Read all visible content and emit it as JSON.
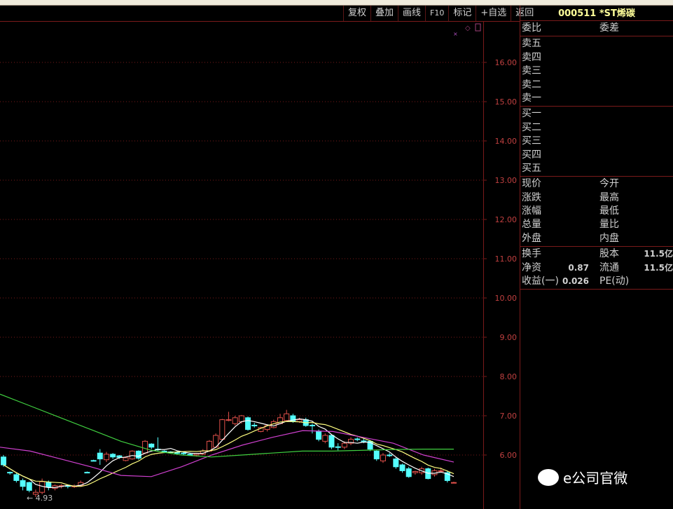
{
  "toolbar": {
    "buttons": [
      "复权",
      "叠加",
      "画线",
      "F10",
      "标记",
      "+自选",
      "返回"
    ]
  },
  "stock": {
    "code_name": "000511 *ST烯碳"
  },
  "panel": {
    "weibi": "委比",
    "weicha": "委差",
    "sell": [
      "卖五",
      "卖四",
      "卖三",
      "卖二",
      "卖一"
    ],
    "buy": [
      "买一",
      "买二",
      "买三",
      "买四",
      "买五"
    ],
    "quote": [
      [
        "现价",
        "今开"
      ],
      [
        "涨跌",
        "最高"
      ],
      [
        "涨幅",
        "最低"
      ],
      [
        "总量",
        "量比"
      ],
      [
        "外盘",
        "内盘"
      ]
    ],
    "fund": [
      {
        "l1": "换手",
        "v1": "",
        "l2": "股本",
        "v2": "11.5亿"
      },
      {
        "l1": "净资",
        "v1": "0.87",
        "l2": "流通",
        "v2": "11.5亿"
      },
      {
        "l1": "收益(一)",
        "v1": "0.026",
        "l2": "PE(动)",
        "v2": ""
      }
    ]
  },
  "watermark": "e公司官微",
  "chart_data": {
    "type": "candlestick",
    "ylim": [
      4.6,
      16.9
    ],
    "yticks": [
      "16.00",
      "15.00",
      "14.00",
      "13.00",
      "12.00",
      "11.00",
      "10.00",
      "9.00",
      "8.00",
      "7.00",
      "6.00"
    ],
    "low_marker": "4.93",
    "colors": {
      "up": "#e0504a",
      "down": "#54ffff",
      "ma_short": "#ffffff",
      "ma_mid": "#ffff80",
      "ma_long": "#d040d0",
      "ma_xlong": "#40d040",
      "grid": "#7a1a1a"
    },
    "candles": [
      [
        5.95,
        5.75,
        6.0,
        5.7
      ],
      [
        5.56,
        5.55,
        5.58,
        5.5
      ],
      [
        5.5,
        5.35,
        5.55,
        5.3
      ],
      [
        5.35,
        5.2,
        5.4,
        5.1
      ],
      [
        5.3,
        5.1,
        5.32,
        5.05
      ],
      [
        5.0,
        5.05,
        5.12,
        4.93
      ],
      [
        5.05,
        5.32,
        5.4,
        5.0
      ],
      [
        5.3,
        5.18,
        5.35,
        5.1
      ],
      [
        5.15,
        5.22,
        5.25,
        5.1
      ],
      [
        5.2,
        5.22,
        5.26,
        5.15
      ],
      [
        5.22,
        5.2,
        5.24,
        5.15
      ],
      [
        5.2,
        5.21,
        5.25,
        5.16
      ],
      [
        5.22,
        5.3,
        5.35,
        5.2
      ],
      [
        5.56,
        5.55,
        5.58,
        5.55
      ],
      [
        5.86,
        5.85,
        5.88,
        5.85
      ],
      [
        6.05,
        5.9,
        6.15,
        5.75
      ],
      [
        5.88,
        6.02,
        6.08,
        5.82
      ],
      [
        6.02,
        5.95,
        6.05,
        5.9
      ],
      [
        5.98,
        5.94,
        6.0,
        5.9
      ],
      [
        5.86,
        5.93,
        5.96,
        5.84
      ],
      [
        5.9,
        6.1,
        6.12,
        5.88
      ],
      [
        6.1,
        5.92,
        6.12,
        5.88
      ],
      [
        6.05,
        6.35,
        6.38,
        6.02
      ],
      [
        6.28,
        6.2,
        6.3,
        6.15
      ],
      [
        6.15,
        6.14,
        6.45,
        6.1
      ],
      [
        6.1,
        6.08,
        6.12,
        6.05
      ],
      [
        6.08,
        6.07,
        6.1,
        6.04
      ],
      [
        6.06,
        6.05,
        6.1,
        6.02
      ],
      [
        6.05,
        6.04,
        6.08,
        6.0
      ],
      [
        6.02,
        6.0,
        6.06,
        5.98
      ],
      [
        6.0,
        6.03,
        6.05,
        5.96
      ],
      [
        6.02,
        6.1,
        6.15,
        6.0
      ],
      [
        6.1,
        6.35,
        6.38,
        6.08
      ],
      [
        6.2,
        6.5,
        6.55,
        6.18
      ],
      [
        6.4,
        6.9,
        6.92,
        6.38
      ],
      [
        6.88,
        6.9,
        7.1,
        6.86
      ],
      [
        6.8,
        6.95,
        7.0,
        6.75
      ],
      [
        6.85,
        7.0,
        7.02,
        6.8
      ],
      [
        6.95,
        6.65,
        6.98,
        6.62
      ],
      [
        6.76,
        6.75,
        6.82,
        6.7
      ],
      [
        6.6,
        6.7,
        6.72,
        6.58
      ],
      [
        6.65,
        6.75,
        6.78,
        6.6
      ],
      [
        6.7,
        6.85,
        6.9,
        6.68
      ],
      [
        6.8,
        6.95,
        7.05,
        6.78
      ],
      [
        6.88,
        7.05,
        7.15,
        6.85
      ],
      [
        7.0,
        6.85,
        7.05,
        6.82
      ],
      [
        6.85,
        6.9,
        6.95,
        6.82
      ],
      [
        6.9,
        6.75,
        6.95,
        6.72
      ],
      [
        6.76,
        6.75,
        6.8,
        6.55
      ],
      [
        6.6,
        6.4,
        6.65,
        6.35
      ],
      [
        6.35,
        6.5,
        6.55,
        6.3
      ],
      [
        6.5,
        6.2,
        6.52,
        6.15
      ],
      [
        6.21,
        6.2,
        6.3,
        6.12
      ],
      [
        6.2,
        6.3,
        6.35,
        6.15
      ],
      [
        6.3,
        6.4,
        6.45,
        6.25
      ],
      [
        6.41,
        6.4,
        6.45,
        6.35
      ],
      [
        6.36,
        6.35,
        6.42,
        6.3
      ],
      [
        6.35,
        6.15,
        6.38,
        6.1
      ],
      [
        6.1,
        5.9,
        6.12,
        5.85
      ],
      [
        5.85,
        6.0,
        6.05,
        5.8
      ],
      [
        6.0,
        5.99,
        6.05,
        5.95
      ],
      [
        5.9,
        5.7,
        5.95,
        5.65
      ],
      [
        5.75,
        5.6,
        5.78,
        5.55
      ],
      [
        5.65,
        5.45,
        5.7,
        5.42
      ],
      [
        5.55,
        5.58,
        5.6,
        5.5
      ],
      [
        5.55,
        5.65,
        5.7,
        5.5
      ],
      [
        5.65,
        5.4,
        5.68,
        5.38
      ],
      [
        5.5,
        5.6,
        5.65,
        5.45
      ],
      [
        5.6,
        5.6,
        5.68,
        5.55
      ],
      [
        5.55,
        5.35,
        5.6,
        5.3
      ],
      [
        5.3,
        5.3,
        5.32,
        5.3
      ]
    ],
    "ma_long": [
      6.2,
      6.1,
      5.9,
      5.7,
      5.48,
      5.45,
      5.7,
      6.0,
      6.25,
      6.45,
      6.62,
      6.6,
      6.45,
      6.3,
      6.0,
      5.82
    ],
    "ma_xlong": [
      7.55,
      7.25,
      6.95,
      6.65,
      6.35,
      6.12,
      6.0,
      5.95,
      6.0,
      6.05,
      6.1,
      6.1,
      6.12,
      6.14,
      6.15,
      6.15
    ]
  }
}
